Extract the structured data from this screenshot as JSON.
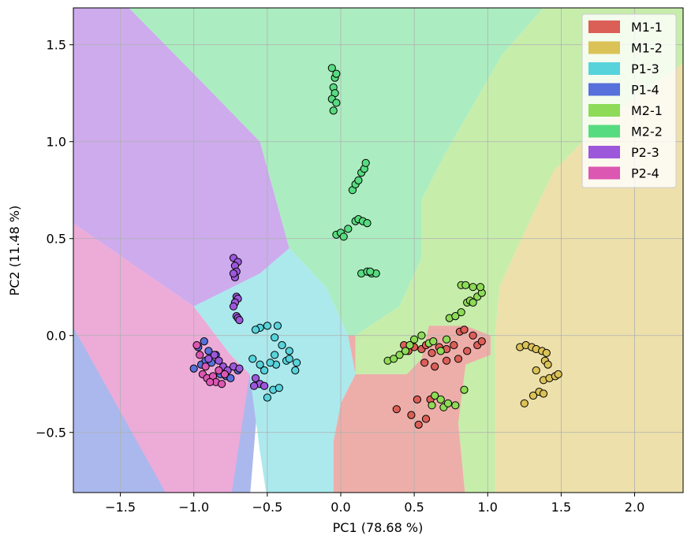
{
  "chart_data": {
    "type": "scatter",
    "title": "",
    "xlabel": "PC1 (78.68 %)",
    "ylabel": "PC2 (11.48 %)",
    "xlim": [
      -1.82,
      2.33
    ],
    "ylim": [
      -0.81,
      1.69
    ],
    "xticks": [
      -1.5,
      -1.0,
      -0.5,
      0.0,
      0.5,
      1.0,
      1.5,
      2.0
    ],
    "xtick_labels": [
      "−1.5",
      "−1.0",
      "−0.5",
      "0.0",
      "0.5",
      "1.0",
      "1.5",
      "2.0"
    ],
    "yticks": [
      -0.5,
      0.0,
      0.5,
      1.0,
      1.5
    ],
    "ytick_labels": [
      "−0.5",
      "0.0",
      "0.5",
      "1.0",
      "1.5"
    ],
    "grid": true,
    "legend_position": "top-right",
    "marker_edge_color": "#000000",
    "series": [
      {
        "name": "M1-1",
        "color": "#db5f57",
        "region_color": "#edaea9",
        "points": [
          [
            0.43,
            -0.05
          ],
          [
            0.46,
            -0.08
          ],
          [
            0.5,
            -0.06
          ],
          [
            0.55,
            -0.07
          ],
          [
            0.58,
            -0.05
          ],
          [
            0.62,
            -0.09
          ],
          [
            0.67,
            -0.06
          ],
          [
            0.72,
            -0.07
          ],
          [
            0.77,
            -0.05
          ],
          [
            0.81,
            0.02
          ],
          [
            0.84,
            0.03
          ],
          [
            0.9,
            0.0
          ],
          [
            0.93,
            -0.05
          ],
          [
            0.96,
            -0.03
          ],
          [
            0.57,
            -0.14
          ],
          [
            0.64,
            -0.16
          ],
          [
            0.72,
            -0.13
          ],
          [
            0.8,
            -0.12
          ],
          [
            0.86,
            -0.08
          ],
          [
            0.38,
            -0.38
          ],
          [
            0.48,
            -0.41
          ],
          [
            0.53,
            -0.46
          ],
          [
            0.58,
            -0.43
          ],
          [
            0.61,
            -0.33
          ],
          [
            0.52,
            -0.33
          ]
        ]
      },
      {
        "name": "M1-2",
        "color": "#dbc257",
        "region_color": "#ede0ab",
        "points": [
          [
            1.22,
            -0.06
          ],
          [
            1.26,
            -0.05
          ],
          [
            1.3,
            -0.06
          ],
          [
            1.33,
            -0.07
          ],
          [
            1.37,
            -0.08
          ],
          [
            1.4,
            -0.09
          ],
          [
            1.39,
            -0.13
          ],
          [
            1.41,
            -0.15
          ],
          [
            1.33,
            -0.18
          ],
          [
            1.38,
            -0.23
          ],
          [
            1.42,
            -0.22
          ],
          [
            1.46,
            -0.21
          ],
          [
            1.48,
            -0.2
          ],
          [
            1.35,
            -0.29
          ],
          [
            1.38,
            -0.3
          ],
          [
            1.31,
            -0.31
          ],
          [
            1.25,
            -0.35
          ]
        ]
      },
      {
        "name": "P1-3",
        "color": "#57d3db",
        "region_color": "#abe9ed",
        "points": [
          [
            -0.6,
            -0.12
          ],
          [
            -0.55,
            -0.15
          ],
          [
            -0.52,
            -0.18
          ],
          [
            -0.45,
            -0.1
          ],
          [
            -0.44,
            -0.15
          ],
          [
            -0.46,
            -0.28
          ],
          [
            -0.5,
            -0.32
          ],
          [
            -0.42,
            -0.27
          ],
          [
            -0.37,
            -0.13
          ],
          [
            -0.35,
            -0.12
          ],
          [
            -0.3,
            -0.14
          ],
          [
            -0.31,
            -0.18
          ],
          [
            -0.55,
            0.04
          ],
          [
            -0.5,
            0.05
          ],
          [
            -0.58,
            0.03
          ],
          [
            -0.43,
            0.05
          ],
          [
            -0.45,
            -0.01
          ],
          [
            -0.4,
            -0.05
          ],
          [
            -0.35,
            -0.08
          ],
          [
            -0.48,
            -0.14
          ]
        ]
      },
      {
        "name": "P1-4",
        "color": "#5770db",
        "region_color": "#abb8ed",
        "points": [
          [
            -1.0,
            -0.17
          ],
          [
            -0.95,
            -0.15
          ],
          [
            -0.92,
            -0.13
          ],
          [
            -0.88,
            -0.14
          ],
          [
            -0.97,
            -0.06
          ],
          [
            -0.93,
            -0.03
          ],
          [
            -0.82,
            -0.2
          ],
          [
            -0.78,
            -0.21
          ],
          [
            -0.75,
            -0.22
          ],
          [
            -0.7,
            -0.18
          ],
          [
            -0.85,
            -0.1
          ],
          [
            -0.9,
            -0.08
          ]
        ]
      },
      {
        "name": "M2-1",
        "color": "#8edb57",
        "region_color": "#c7edab",
        "points": [
          [
            0.32,
            -0.13
          ],
          [
            0.36,
            -0.12
          ],
          [
            0.4,
            -0.1
          ],
          [
            0.44,
            -0.08
          ],
          [
            0.47,
            -0.05
          ],
          [
            0.5,
            -0.02
          ],
          [
            0.55,
            0.0
          ],
          [
            0.6,
            -0.04
          ],
          [
            0.63,
            -0.03
          ],
          [
            0.68,
            -0.08
          ],
          [
            0.72,
            -0.02
          ],
          [
            0.74,
            0.09
          ],
          [
            0.78,
            0.1
          ],
          [
            0.82,
            0.12
          ],
          [
            0.86,
            0.17
          ],
          [
            0.88,
            0.18
          ],
          [
            0.9,
            0.17
          ],
          [
            0.93,
            0.2
          ],
          [
            0.96,
            0.22
          ],
          [
            0.82,
            0.26
          ],
          [
            0.85,
            0.26
          ],
          [
            0.9,
            0.25
          ],
          [
            0.95,
            0.25
          ],
          [
            0.64,
            -0.31
          ],
          [
            0.68,
            -0.33
          ],
          [
            0.7,
            -0.37
          ],
          [
            0.73,
            -0.35
          ],
          [
            0.78,
            -0.36
          ],
          [
            0.84,
            -0.28
          ],
          [
            0.62,
            -0.36
          ]
        ]
      },
      {
        "name": "M2-2",
        "color": "#57db80",
        "region_color": "#abedc0",
        "points": [
          [
            -0.06,
            1.38
          ],
          [
            -0.04,
            1.33
          ],
          [
            -0.03,
            1.35
          ],
          [
            -0.05,
            1.28
          ],
          [
            -0.04,
            1.25
          ],
          [
            -0.06,
            1.22
          ],
          [
            -0.03,
            1.2
          ],
          [
            -0.05,
            1.16
          ],
          [
            0.08,
            0.75
          ],
          [
            0.1,
            0.78
          ],
          [
            0.12,
            0.8
          ],
          [
            0.14,
            0.84
          ],
          [
            0.16,
            0.86
          ],
          [
            0.17,
            0.89
          ],
          [
            -0.03,
            0.52
          ],
          [
            0.0,
            0.53
          ],
          [
            0.02,
            0.51
          ],
          [
            0.05,
            0.55
          ],
          [
            0.1,
            0.59
          ],
          [
            0.12,
            0.6
          ],
          [
            0.15,
            0.59
          ],
          [
            0.18,
            0.58
          ],
          [
            0.14,
            0.32
          ],
          [
            0.18,
            0.33
          ],
          [
            0.21,
            0.32
          ],
          [
            0.24,
            0.32
          ],
          [
            0.2,
            0.33
          ]
        ]
      },
      {
        "name": "P2-3",
        "color": "#9d57db",
        "region_color": "#cdabed",
        "points": [
          [
            -0.73,
            0.4
          ],
          [
            -0.7,
            0.38
          ],
          [
            -0.72,
            0.36
          ],
          [
            -0.71,
            0.33
          ],
          [
            -0.72,
            0.3
          ],
          [
            -0.73,
            0.32
          ],
          [
            -0.71,
            0.2
          ],
          [
            -0.7,
            0.19
          ],
          [
            -0.72,
            0.17
          ],
          [
            -0.71,
            0.1
          ],
          [
            -0.7,
            0.09
          ],
          [
            -0.69,
            0.08
          ],
          [
            -0.73,
            0.15
          ],
          [
            -0.9,
            -0.12
          ],
          [
            -0.86,
            -0.1
          ],
          [
            -0.83,
            -0.13
          ],
          [
            -0.8,
            -0.16
          ],
          [
            -0.77,
            -0.18
          ],
          [
            -0.73,
            -0.16
          ],
          [
            -0.69,
            -0.17
          ],
          [
            -0.58,
            -0.22
          ],
          [
            -0.55,
            -0.25
          ],
          [
            -0.52,
            -0.26
          ],
          [
            -0.59,
            -0.26
          ]
        ]
      },
      {
        "name": "P2-4",
        "color": "#db57b2",
        "region_color": "#edabd8",
        "points": [
          [
            -0.94,
            -0.2
          ],
          [
            -0.91,
            -0.22
          ],
          [
            -0.87,
            -0.21
          ],
          [
            -0.85,
            -0.24
          ],
          [
            -0.89,
            -0.24
          ],
          [
            -0.83,
            -0.18
          ],
          [
            -0.81,
            -0.25
          ],
          [
            -0.79,
            -0.2
          ],
          [
            -0.98,
            -0.05
          ],
          [
            -0.96,
            -0.1
          ],
          [
            -0.92,
            -0.16
          ]
        ]
      }
    ]
  }
}
